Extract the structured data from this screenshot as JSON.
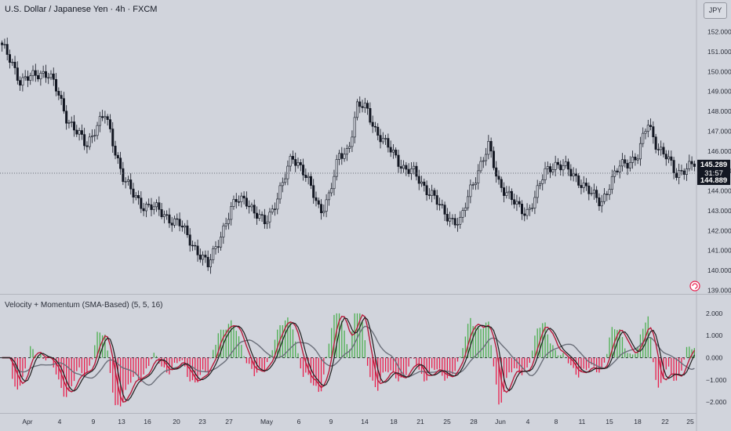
{
  "header": {
    "title": "U.S. Dollar / Japanese Yen · 4h · FXCM",
    "currency_button": "JPY"
  },
  "colors": {
    "background": "#d1d4dc",
    "candle": "#131722",
    "up_bar": "#4caf50",
    "down_bar": "#e91e4c",
    "fast_line": "#b71c3c",
    "slow_line": "#6b6f7a",
    "signal_line": "#1e1e1e",
    "up_line": "#2e9e4a",
    "price_label_bg": "#131722",
    "price_label_text": "#ffffff"
  },
  "chart_data": [
    {
      "type": "candlestick",
      "title": "U.S. Dollar / Japanese Yen · 4h · FXCM",
      "y_ticks": [
        "152.000",
        "151.000",
        "150.000",
        "149.000",
        "148.000",
        "147.000",
        "146.000",
        "145.000",
        "144.000",
        "143.000",
        "142.000",
        "141.000",
        "140.000",
        "139.000"
      ],
      "ylim": [
        138.8,
        152.6
      ],
      "last_price": "145.289",
      "countdown": "31:57",
      "reference_price": "144.889",
      "close_series": [
        151.2,
        150.6,
        149.4,
        149.7,
        150.0,
        149.8,
        148.9,
        147.6,
        146.9,
        146.3,
        147.2,
        147.8,
        146.2,
        144.6,
        143.8,
        143.3,
        143.2,
        142.9,
        142.6,
        142.3,
        141.6,
        140.9,
        140.2,
        141.4,
        142.5,
        143.5,
        143.7,
        142.8,
        142.4,
        143.2,
        144.3,
        145.8,
        145.2,
        144.1,
        143.0,
        143.8,
        145.7,
        146.1,
        148.3,
        148.1,
        147.0,
        146.3,
        145.8,
        145.1,
        144.9,
        144.3,
        143.8,
        143.0,
        142.6,
        142.4,
        144.0,
        145.2,
        146.2,
        144.5,
        143.9,
        143.2,
        142.9,
        143.7,
        144.9,
        145.4,
        145.2,
        144.8,
        144.4,
        143.8,
        143.4,
        144.4,
        145.2,
        145.5,
        145.8,
        147.4,
        146.3,
        145.7,
        144.8,
        145.2,
        145.3
      ]
    },
    {
      "type": "bar+line",
      "title": "Velocity + Momentum (SMA-Based) (5, 5, 16)",
      "y_ticks": [
        "2.000",
        "1.000",
        "0.000",
        "−1.000",
        "−2.000"
      ],
      "ylim": [
        -2.5,
        2.2
      ]
    }
  ],
  "x_ticks": [
    "Apr",
    "4",
    "9",
    "13",
    "16",
    "20",
    "23",
    "27",
    "May",
    "6",
    "9",
    "14",
    "18",
    "21",
    "25",
    "28",
    "Jun",
    "4",
    "8",
    "11",
    "15",
    "18",
    "22",
    "25"
  ]
}
